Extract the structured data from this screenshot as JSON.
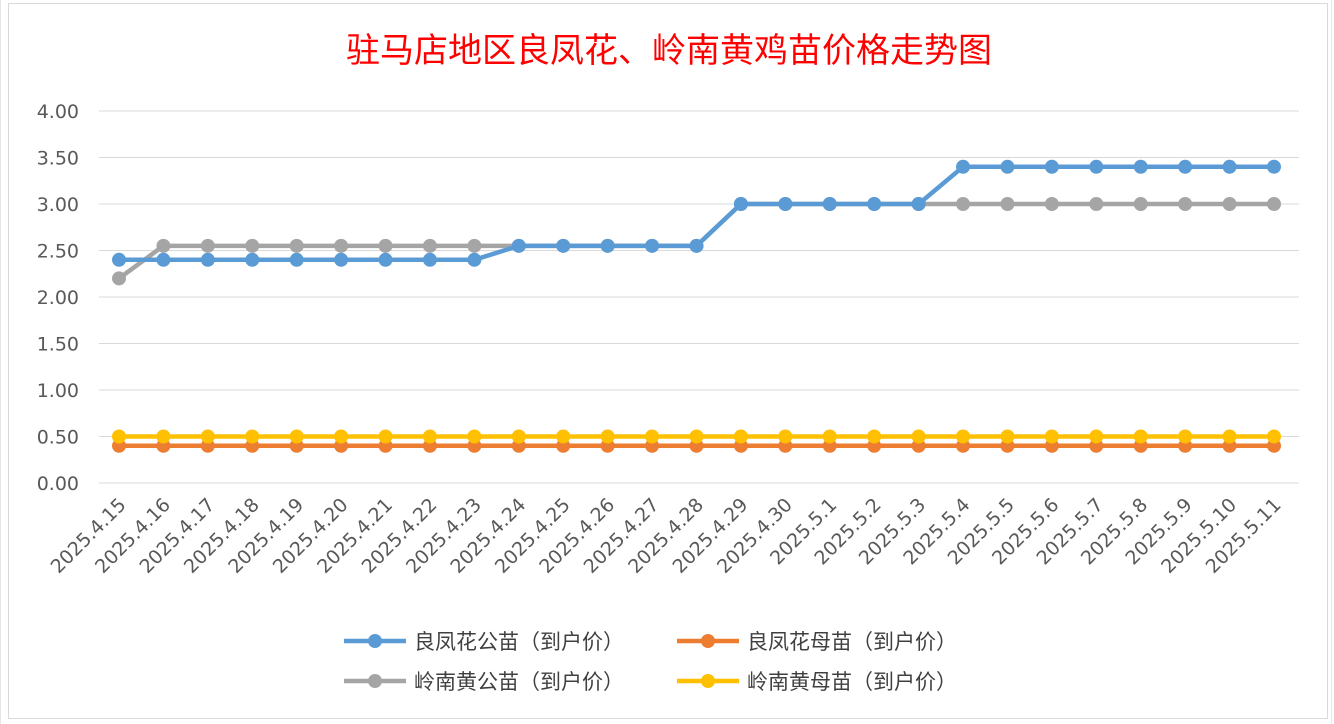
{
  "chart_data": {
    "type": "line",
    "title": "驻马店地区良凤花、岭南黄鸡苗价格走势图",
    "xlabel": "",
    "ylabel": "",
    "ylim": [
      0,
      4
    ],
    "ystep": 0.5,
    "ytick_format": "0.00",
    "grid": true,
    "legend_position": "bottom",
    "categories": [
      "2025.4.15",
      "2025.4.16",
      "2025.4.17",
      "2025.4.18",
      "2025.4.19",
      "2025.4.20",
      "2025.4.21",
      "2025.4.22",
      "2025.4.23",
      "2025.4.24",
      "2025.4.25",
      "2025.4.26",
      "2025.4.27",
      "2025.4.28",
      "2025.4.29",
      "2025.4.30",
      "2025.5.1",
      "2025.5.2",
      "2025.5.3",
      "2025.5.4",
      "2025.5.5",
      "2025.5.6",
      "2025.5.7",
      "2025.5.8",
      "2025.5.9",
      "2025.5.10",
      "2025.5.11"
    ],
    "series": [
      {
        "name": "良凤花公苗（到户价）",
        "color": "#5b9bd5",
        "values": [
          2.4,
          2.4,
          2.4,
          2.4,
          2.4,
          2.4,
          2.4,
          2.4,
          2.4,
          2.55,
          2.55,
          2.55,
          2.55,
          2.55,
          3.0,
          3.0,
          3.0,
          3.0,
          3.0,
          3.4,
          3.4,
          3.4,
          3.4,
          3.4,
          3.4,
          3.4,
          3.4
        ]
      },
      {
        "name": "良凤花母苗（到户价）",
        "color": "#ed7d31",
        "values": [
          0.4,
          0.4,
          0.4,
          0.4,
          0.4,
          0.4,
          0.4,
          0.4,
          0.4,
          0.4,
          0.4,
          0.4,
          0.4,
          0.4,
          0.4,
          0.4,
          0.4,
          0.4,
          0.4,
          0.4,
          0.4,
          0.4,
          0.4,
          0.4,
          0.4,
          0.4,
          0.4
        ]
      },
      {
        "name": "岭南黄公苗（到户价）",
        "color": "#a5a5a5",
        "values": [
          2.2,
          2.55,
          2.55,
          2.55,
          2.55,
          2.55,
          2.55,
          2.55,
          2.55,
          2.55,
          2.55,
          2.55,
          2.55,
          2.55,
          3.0,
          3.0,
          3.0,
          3.0,
          3.0,
          3.0,
          3.0,
          3.0,
          3.0,
          3.0,
          3.0,
          3.0,
          3.0
        ]
      },
      {
        "name": "岭南黄母苗（到户价）",
        "color": "#ffc000",
        "values": [
          0.5,
          0.5,
          0.5,
          0.5,
          0.5,
          0.5,
          0.5,
          0.5,
          0.5,
          0.5,
          0.5,
          0.5,
          0.5,
          0.5,
          0.5,
          0.5,
          0.5,
          0.5,
          0.5,
          0.5,
          0.5,
          0.5,
          0.5,
          0.5,
          0.5,
          0.5,
          0.5
        ]
      }
    ],
    "draw_order": [
      1,
      3,
      2,
      0
    ]
  }
}
